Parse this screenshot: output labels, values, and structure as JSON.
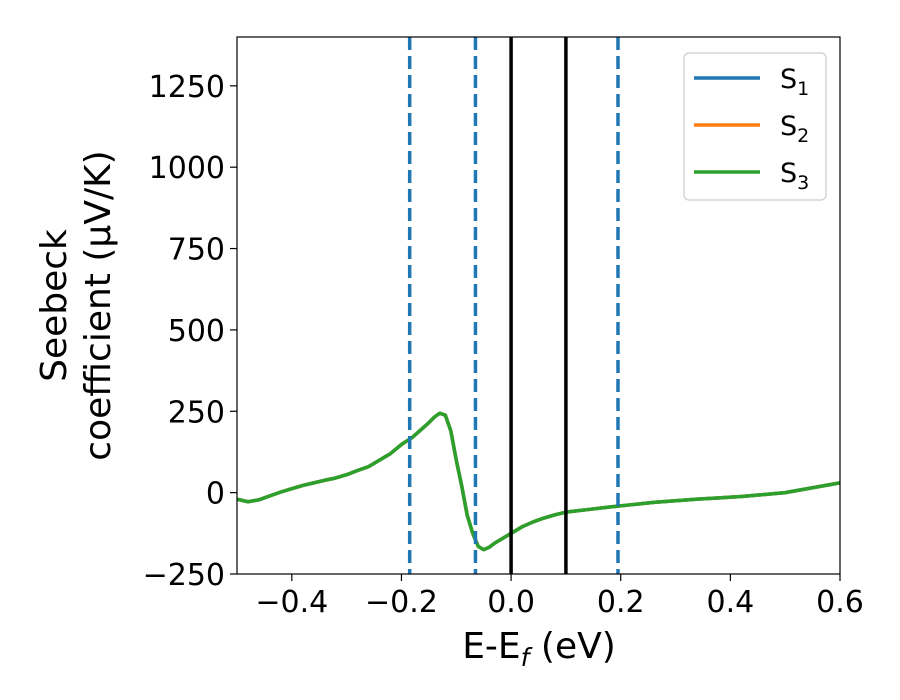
{
  "chart_data": {
    "type": "line",
    "xlabel": "E-E_f (eV)",
    "xlabel_parts": {
      "main": "E-E",
      "sub": "f",
      "rest": " (eV)"
    },
    "ylabel_lines": [
      "Seebeck",
      "coefficient  (μV/K)"
    ],
    "xlim": [
      -0.5,
      0.6
    ],
    "ylim": [
      -250,
      1400
    ],
    "xticks": [
      -0.4,
      -0.2,
      0.0,
      0.2,
      0.4,
      0.6
    ],
    "xtick_labels": [
      "−0.4",
      "−0.2",
      "0.0",
      "0.2",
      "0.4",
      "0.6"
    ],
    "yticks": [
      -250,
      0,
      250,
      500,
      750,
      1000,
      1250
    ],
    "ytick_labels": [
      "−250",
      "0",
      "250",
      "500",
      "750",
      "1000",
      "1250"
    ],
    "grid": false,
    "legend_position": "top-right",
    "series": [
      {
        "name": "S_1",
        "label_main": "S",
        "label_sub": "1",
        "color": "#1f77b4",
        "x": [
          -0.5,
          -0.48,
          -0.46,
          -0.44,
          -0.42,
          -0.4,
          -0.38,
          -0.36,
          -0.34,
          -0.32,
          -0.3,
          -0.28,
          -0.26,
          -0.24,
          -0.22,
          -0.2,
          -0.18,
          -0.16,
          -0.15,
          -0.14,
          -0.13,
          -0.12,
          -0.11,
          -0.1,
          -0.09,
          -0.08,
          -0.07,
          -0.06,
          -0.05,
          -0.04,
          -0.03,
          -0.02,
          -0.01,
          0.0,
          0.02,
          0.04,
          0.06,
          0.08,
          0.1,
          0.14,
          0.18,
          0.22,
          0.26,
          0.3,
          0.34,
          0.38,
          0.42,
          0.46,
          0.5,
          0.55,
          0.6
        ],
        "y": [
          -20,
          -28,
          -22,
          -10,
          2,
          12,
          22,
          30,
          38,
          45,
          55,
          68,
          80,
          100,
          120,
          148,
          170,
          200,
          215,
          232,
          244,
          238,
          190,
          100,
          20,
          -70,
          -125,
          -165,
          -175,
          -168,
          -155,
          -145,
          -135,
          -125,
          -105,
          -90,
          -78,
          -68,
          -60,
          -52,
          -44,
          -37,
          -30,
          -25,
          -20,
          -16,
          -12,
          -6,
          0,
          15,
          30
        ]
      },
      {
        "name": "S_2",
        "label_main": "S",
        "label_sub": "2",
        "color": "#ff7f0e",
        "x": [
          -0.5,
          -0.48,
          -0.46,
          -0.44,
          -0.42,
          -0.4,
          -0.38,
          -0.36,
          -0.34,
          -0.32,
          -0.3,
          -0.28,
          -0.26,
          -0.24,
          -0.22,
          -0.2,
          -0.18,
          -0.16,
          -0.15,
          -0.14,
          -0.13,
          -0.12,
          -0.11,
          -0.1,
          -0.09,
          -0.08,
          -0.07,
          -0.06,
          -0.05,
          -0.04,
          -0.03,
          -0.02,
          -0.01,
          0.0,
          0.02,
          0.04,
          0.06,
          0.08,
          0.1,
          0.14,
          0.18,
          0.22,
          0.26,
          0.3,
          0.34,
          0.38,
          0.42,
          0.46,
          0.5,
          0.55,
          0.6
        ],
        "y": [
          -20,
          -28,
          -22,
          -10,
          2,
          12,
          22,
          30,
          38,
          45,
          55,
          68,
          80,
          100,
          120,
          148,
          170,
          200,
          215,
          232,
          244,
          238,
          190,
          100,
          20,
          -70,
          -125,
          -165,
          -175,
          -168,
          -155,
          -145,
          -135,
          -125,
          -105,
          -90,
          -78,
          -68,
          -60,
          -52,
          -44,
          -37,
          -30,
          -25,
          -20,
          -16,
          -12,
          -6,
          0,
          15,
          30
        ]
      },
      {
        "name": "S_3",
        "label_main": "S",
        "label_sub": "3",
        "color": "#2ca02c",
        "x": [
          -0.5,
          -0.48,
          -0.46,
          -0.44,
          -0.42,
          -0.4,
          -0.38,
          -0.36,
          -0.34,
          -0.32,
          -0.3,
          -0.28,
          -0.26,
          -0.24,
          -0.22,
          -0.2,
          -0.18,
          -0.16,
          -0.15,
          -0.14,
          -0.13,
          -0.12,
          -0.11,
          -0.1,
          -0.09,
          -0.08,
          -0.07,
          -0.06,
          -0.05,
          -0.04,
          -0.03,
          -0.02,
          -0.01,
          0.0,
          0.02,
          0.04,
          0.06,
          0.08,
          0.1,
          0.14,
          0.18,
          0.22,
          0.26,
          0.3,
          0.34,
          0.38,
          0.42,
          0.46,
          0.5,
          0.55,
          0.6
        ],
        "y": [
          -20,
          -28,
          -22,
          -10,
          2,
          12,
          22,
          30,
          38,
          45,
          55,
          68,
          80,
          100,
          120,
          148,
          170,
          200,
          215,
          232,
          244,
          238,
          190,
          100,
          20,
          -70,
          -125,
          -165,
          -175,
          -168,
          -155,
          -145,
          -135,
          -125,
          -105,
          -90,
          -78,
          -68,
          -60,
          -52,
          -44,
          -37,
          -30,
          -25,
          -20,
          -16,
          -12,
          -6,
          0,
          15,
          30
        ]
      }
    ],
    "vlines": [
      {
        "x": -0.185,
        "style": "dashed",
        "color": "#1f77b4"
      },
      {
        "x": -0.065,
        "style": "dashed",
        "color": "#1f77b4"
      },
      {
        "x": 0.0,
        "style": "solid",
        "color": "#000000"
      },
      {
        "x": 0.1,
        "style": "solid",
        "color": "#000000"
      },
      {
        "x": 0.195,
        "style": "dashed",
        "color": "#1f77b4"
      }
    ]
  }
}
